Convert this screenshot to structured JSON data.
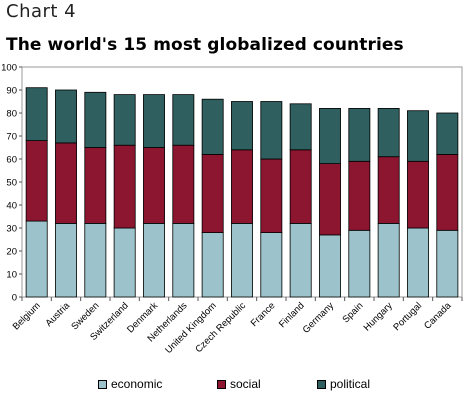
{
  "header": {
    "chart_label": "Chart 4",
    "title": "The world's 15 most globalized countries"
  },
  "colors": {
    "economic": "#9cc3cb",
    "social": "#8c1530",
    "political": "#2f5f5f"
  },
  "legend": {
    "items": [
      {
        "key": "economic",
        "label": "economic"
      },
      {
        "key": "social",
        "label": "social"
      },
      {
        "key": "political",
        "label": "political"
      }
    ]
  },
  "chart_data": {
    "type": "bar",
    "stacked": true,
    "categories": [
      "Belgium",
      "Austria",
      "Sweden",
      "Switzerland",
      "Denmark",
      "Netherlands",
      "United Kingdom",
      "Czech Republic",
      "France",
      "Finland",
      "Germany",
      "Spain",
      "Hungary",
      "Portugal",
      "Canada"
    ],
    "series": [
      {
        "name": "economic",
        "values": [
          33,
          32,
          32,
          30,
          32,
          32,
          28,
          32,
          28,
          32,
          27,
          29,
          32,
          30,
          29
        ]
      },
      {
        "name": "social",
        "values": [
          35,
          35,
          33,
          36,
          33,
          34,
          34,
          32,
          32,
          32,
          31,
          30,
          29,
          29,
          33
        ]
      },
      {
        "name": "political",
        "values": [
          23,
          23,
          24,
          22,
          23,
          22,
          24,
          21,
          25,
          20,
          24,
          23,
          21,
          22,
          18
        ]
      }
    ],
    "yticks": [
      0,
      10,
      20,
      30,
      40,
      50,
      60,
      70,
      80,
      90,
      100
    ],
    "ylim": [
      0,
      100
    ],
    "title": "The world's 15 most globalized countries",
    "xlabel": "",
    "ylabel": "",
    "grid": false,
    "legend_position": "bottom"
  }
}
